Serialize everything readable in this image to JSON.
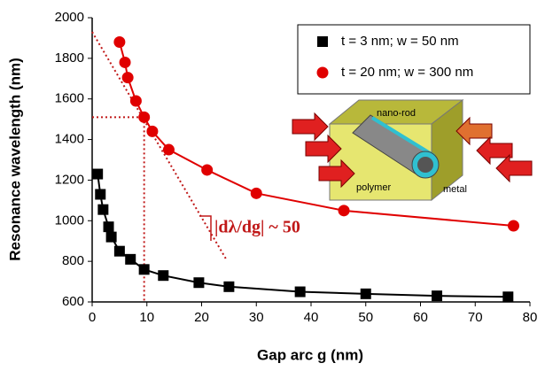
{
  "chart_data": {
    "type": "scatter-line",
    "xlabel": "Gap arc g (nm)",
    "ylabel": "Resonance wavelength (nm)",
    "xlim": [
      0,
      80
    ],
    "xticks": [
      0,
      10,
      20,
      30,
      40,
      50,
      60,
      70,
      80
    ],
    "ylim": [
      600,
      2000
    ],
    "yticks": [
      600,
      800,
      1000,
      1200,
      1400,
      1600,
      1800,
      2000
    ],
    "series": [
      {
        "name": "t = 3 nm; w = 50 nm",
        "color": "#000000",
        "marker": "square",
        "x": [
          1,
          1.5,
          2,
          3,
          3.5,
          5,
          7,
          9.5,
          13,
          19.5,
          25,
          38,
          50,
          63,
          76
        ],
        "values": [
          1230,
          1130,
          1055,
          970,
          920,
          850,
          810,
          760,
          730,
          695,
          675,
          650,
          640,
          630,
          625
        ]
      },
      {
        "name": "t = 20 nm; w = 300 nm",
        "color": "#e00000",
        "marker": "circle",
        "x": [
          5,
          6,
          6.5,
          8,
          9.5,
          11,
          14,
          21,
          30,
          46,
          77
        ],
        "values": [
          1880,
          1780,
          1705,
          1590,
          1510,
          1440,
          1350,
          1250,
          1135,
          1050,
          975
        ]
      }
    ],
    "tangent": {
      "x": [
        0,
        24.5
      ],
      "y": [
        1930,
        810
      ]
    },
    "annotation": "|dλ/dg| ~ 50",
    "inset_labels": [
      "nano-rod",
      "polymer",
      "metal"
    ]
  }
}
